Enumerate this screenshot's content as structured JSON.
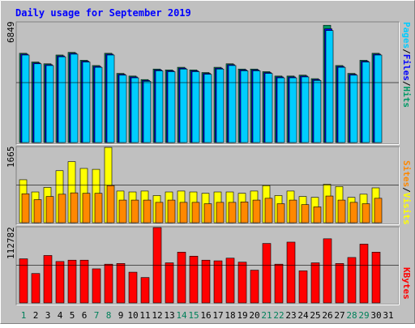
{
  "chart_data": {
    "type": "bar",
    "title": "Daily usage for September 2019",
    "categories": [
      "1",
      "2",
      "3",
      "4",
      "5",
      "6",
      "7",
      "8",
      "9",
      "10",
      "11",
      "12",
      "13",
      "14",
      "15",
      "16",
      "17",
      "18",
      "19",
      "20",
      "21",
      "22",
      "23",
      "24",
      "25",
      "26",
      "27",
      "28",
      "29",
      "30",
      "31"
    ],
    "weekend_days": [
      "1",
      "7",
      "8",
      "14",
      "15",
      "21",
      "22",
      "28",
      "29"
    ],
    "panels": [
      {
        "id": "top",
        "scale_label": "6849",
        "ylim": [
          0,
          6849
        ],
        "side_label_parts": [
          "Pages",
          "Files",
          "Hits"
        ],
        "series": [
          {
            "name": "Hits",
            "color": "#009966",
            "values": [
              5100,
              4600,
              4500,
              5000,
              5150,
              4700,
              4400,
              5100,
              3950,
              3800,
              3600,
              4200,
              4150,
              4300,
              4150,
              4000,
              4300,
              4500,
              4200,
              4200,
              4050,
              3800,
              3800,
              3850,
              3650,
              6700,
              4400,
              3950,
              4700,
              5100,
              0
            ]
          },
          {
            "name": "Files",
            "color": "#0000ff",
            "values": [
              5050,
              4550,
              4450,
              4950,
              5100,
              4650,
              4350,
              5050,
              3900,
              3750,
              3550,
              4150,
              4100,
              4250,
              4100,
              3950,
              4250,
              4450,
              4150,
              4150,
              4000,
              3750,
              3750,
              3800,
              3600,
              6500,
              4350,
              3900,
              4650,
              5050,
              0
            ]
          },
          {
            "name": "Pages",
            "color": "#00ccff",
            "values": [
              5000,
              4500,
              4400,
              4900,
              5050,
              4600,
              4300,
              5000,
              3850,
              3700,
              3500,
              4100,
              4050,
              4200,
              4050,
              3900,
              4200,
              4400,
              4100,
              4100,
              3950,
              3700,
              3700,
              3750,
              3550,
              6400,
              4300,
              3850,
              4600,
              5000,
              0
            ]
          }
        ]
      },
      {
        "id": "mid",
        "scale_label": "1665",
        "ylim": [
          0,
          1665
        ],
        "side_label_parts": [
          "Sites",
          "Visits"
        ],
        "series": [
          {
            "name": "Visits",
            "color": "#ffff00",
            "values": [
              950,
              680,
              780,
              1150,
              1350,
              1200,
              1180,
              1665,
              700,
              680,
              700,
              600,
              680,
              700,
              680,
              650,
              680,
              680,
              650,
              700,
              820,
              600,
              700,
              580,
              560,
              850,
              800,
              560,
              630,
              770,
              0
            ]
          },
          {
            "name": "Sites",
            "color": "#ff8800",
            "values": [
              640,
              510,
              580,
              630,
              660,
              650,
              650,
              820,
              500,
              500,
              500,
              450,
              500,
              450,
              450,
              420,
              450,
              450,
              460,
              500,
              540,
              420,
              500,
              400,
              350,
              590,
              500,
              450,
              420,
              540,
              0
            ]
          }
        ]
      },
      {
        "id": "bottom",
        "scale_label": "112782",
        "ylim": [
          0,
          112782
        ],
        "side_label_parts": [
          "KBytes"
        ],
        "series": [
          {
            "name": "KBytes",
            "color": "#ff0000",
            "values": [
              66000,
              44000,
              71000,
              62000,
              64000,
              64000,
              51000,
              58000,
              59000,
              46000,
              38000,
              112782,
              60000,
              76000,
              70000,
              64000,
              63000,
              67000,
              61000,
              49000,
              89000,
              58000,
              91000,
              48000,
              60000,
              96000,
              59000,
              68000,
              88000,
              76000,
              0
            ]
          }
        ]
      }
    ]
  },
  "colors": {
    "background": "#c0c0c0",
    "title_text": "#0000ff",
    "pages": "#00ccff",
    "files": "#0000ff",
    "hits": "#009966",
    "visits": "#ffff00",
    "sites": "#ff8800",
    "kbytes": "#ff0000",
    "weekday_label": "#000000",
    "weekend_label": "#00805a"
  },
  "separator": "/"
}
